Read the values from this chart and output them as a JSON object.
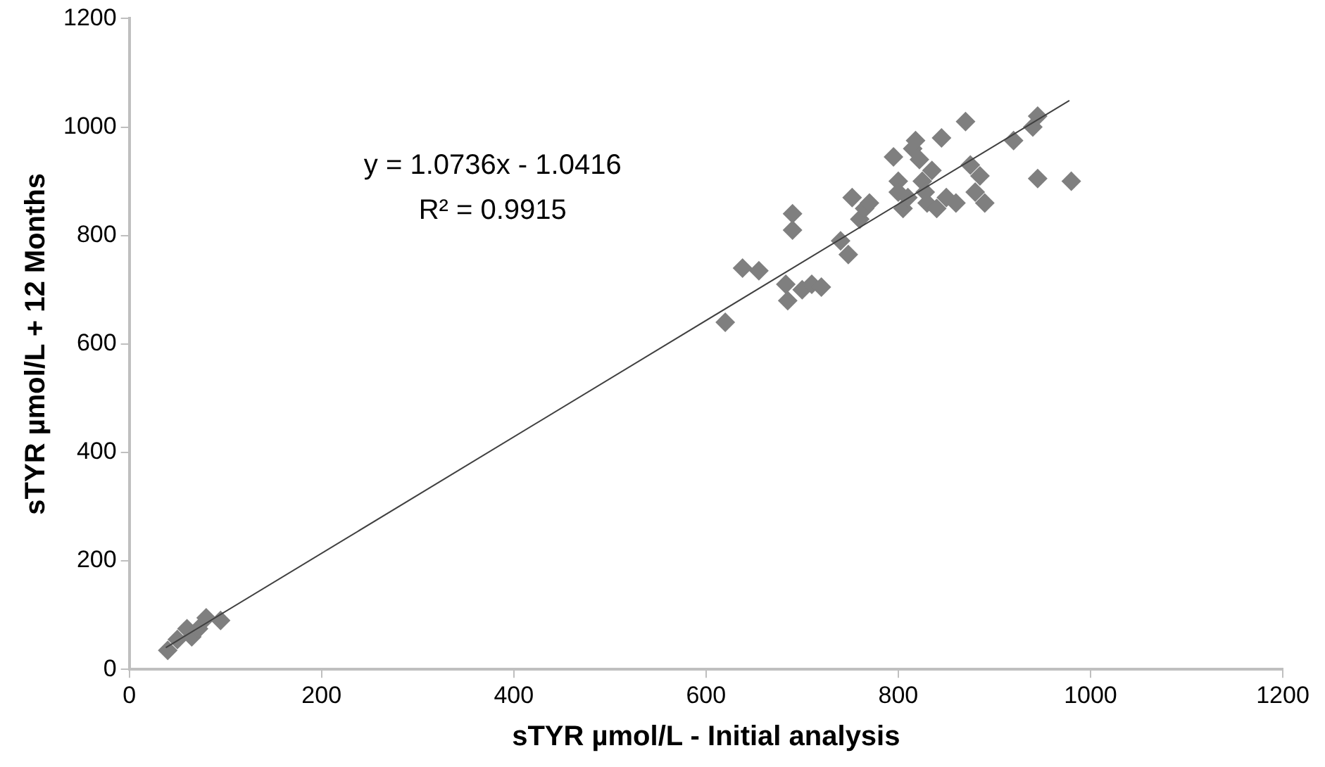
{
  "chart_data": {
    "type": "scatter",
    "xlabel": "sTYR µmol/L - Initial analysis",
    "ylabel": "sTYR µmol/L + 12 Months",
    "xlim": [
      0,
      1200
    ],
    "xticks": [
      0,
      200,
      400,
      600,
      800,
      1000,
      1200
    ],
    "ylim": [
      0,
      1200
    ],
    "yticks": [
      0,
      200,
      400,
      600,
      800,
      1000,
      1200
    ],
    "grid": false,
    "legend": false,
    "marker": "diamond",
    "annotations": [
      "y = 1.0736x - 1.0416",
      "R² = 0.9915"
    ],
    "series": [
      {
        "color": "#7f7f7f",
        "x": [
          40,
          50,
          60,
          65,
          72,
          80,
          95,
          620,
          638,
          655,
          683,
          685,
          690,
          690,
          700,
          710,
          720,
          740,
          748,
          752,
          760,
          765,
          770,
          795,
          800,
          800,
          805,
          810,
          815,
          818,
          822,
          825,
          828,
          830,
          835,
          840,
          845,
          850,
          860,
          870,
          875,
          880,
          885,
          890,
          920,
          940,
          945,
          945,
          980
        ],
        "values": [
          35,
          55,
          75,
          60,
          75,
          95,
          90,
          640,
          740,
          735,
          710,
          680,
          810,
          840,
          700,
          710,
          705,
          790,
          765,
          870,
          830,
          850,
          860,
          945,
          900,
          880,
          850,
          870,
          960,
          975,
          940,
          900,
          880,
          860,
          920,
          850,
          980,
          870,
          860,
          1010,
          930,
          880,
          910,
          860,
          975,
          1000,
          1020,
          905,
          900
        ]
      },
      {
        "type": "line",
        "marker": "none",
        "color": "#404040",
        "x": [
          38,
          978
        ],
        "values": [
          40,
          1049
        ]
      }
    ]
  }
}
